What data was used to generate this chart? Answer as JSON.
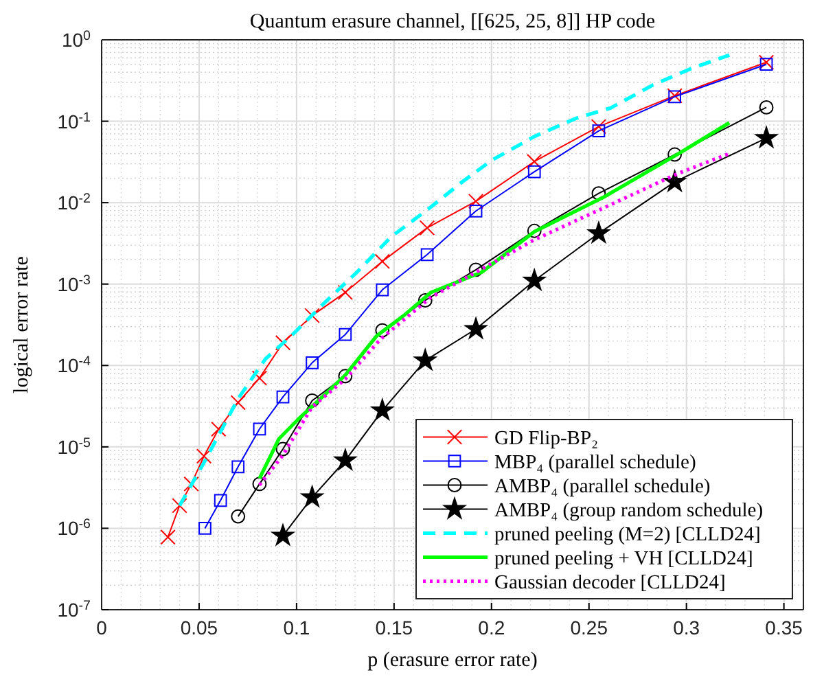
{
  "chart_data": {
    "type": "line",
    "title": "Quantum erasure channel, [[625, 25, 8]] HP code",
    "xlabel": "p (erasure error rate)",
    "ylabel": "logical error rate",
    "xlim": [
      0,
      0.36
    ],
    "xticks": [
      0,
      0.05,
      0.1,
      0.15,
      0.2,
      0.25,
      0.3,
      0.35
    ],
    "ylim": [
      1e-07,
      1
    ],
    "yticks": [
      {
        "value": 1e-07,
        "label": "10$^{-7}$"
      },
      {
        "value": 1e-06,
        "label": "10$^{-6}$"
      },
      {
        "value": 1e-05,
        "label": "10$^{-5}$"
      },
      {
        "value": 0.0001,
        "label": "10$^{-4}$"
      },
      {
        "value": 0.001,
        "label": "10$^{-3}$"
      },
      {
        "value": 0.01,
        "label": "10$^{-2}$"
      },
      {
        "value": 0.1,
        "label": "10$^{-1}$"
      },
      {
        "value": 1,
        "label": "10$^{0}$"
      }
    ],
    "log": true,
    "grid": true,
    "legend": "bottom right",
    "series": [
      {
        "name": "GD Flip-BP₂",
        "color": "#ff0000",
        "marker": "cross",
        "line_style": "solid",
        "x": [
          0.034,
          0.04,
          0.046,
          0.0525,
          0.06,
          0.07,
          0.081,
          0.093,
          0.108,
          0.125,
          0.144,
          0.167,
          0.192,
          0.222,
          0.255,
          0.294,
          0.341
        ],
        "values": [
          7.8e-07,
          1.9e-06,
          3.5e-06,
          7.7e-06,
          1.65e-05,
          3.5e-05,
          7e-05,
          0.00019,
          0.00041,
          0.00079,
          0.0019,
          0.0049,
          0.0104,
          0.032,
          0.086,
          0.206,
          0.53
        ]
      },
      {
        "name": "MBP₄ (parallel schedule)",
        "color": "#0000ff",
        "marker": "square",
        "line_style": "solid",
        "x": [
          0.053,
          0.061,
          0.07,
          0.081,
          0.093,
          0.108,
          0.125,
          0.144,
          0.167,
          0.192,
          0.222,
          0.255,
          0.294,
          0.341
        ],
        "values": [
          1e-06,
          2.2e-06,
          5.7e-06,
          1.66e-05,
          4.1e-05,
          0.000108,
          0.00024,
          0.00085,
          0.0023,
          0.0079,
          0.024,
          0.076,
          0.2,
          0.5
        ]
      },
      {
        "name": "AMBP₄ (parallel schedule)",
        "color": "#000000",
        "marker": "circle",
        "line_style": "solid",
        "x": [
          0.07,
          0.081,
          0.093,
          0.108,
          0.125,
          0.144,
          0.166,
          0.192,
          0.222,
          0.255,
          0.294,
          0.341
        ],
        "values": [
          1.4e-06,
          3.5e-06,
          9.4e-06,
          3.7e-05,
          7.4e-05,
          0.00027,
          0.00063,
          0.0015,
          0.0045,
          0.013,
          0.039,
          0.148
        ]
      },
      {
        "name": "AMBP₄ (group random schedule)",
        "color": "#000000",
        "marker": "star",
        "line_style": "solid",
        "x": [
          0.093,
          0.108,
          0.125,
          0.144,
          0.166,
          0.192,
          0.222,
          0.255,
          0.294,
          0.341
        ],
        "values": [
          8.1e-07,
          2.4e-06,
          6.8e-06,
          2.8e-05,
          0.000115,
          0.00028,
          0.0011,
          0.0042,
          0.018,
          0.062
        ]
      },
      {
        "name": "pruned peeling (M=2) [CLLD24]",
        "color": "#00ffff",
        "marker": "none",
        "line_style": "dashed",
        "x": [
          0.04,
          0.0525,
          0.07,
          0.084,
          0.098,
          0.115,
          0.131,
          0.1485,
          0.168,
          0.185,
          0.2,
          0.222,
          0.244,
          0.261,
          0.283,
          0.302,
          0.322
        ],
        "values": [
          1.9e-06,
          6.4e-06,
          3.9e-05,
          0.00012,
          0.00024,
          0.00061,
          0.0014,
          0.0038,
          0.0085,
          0.018,
          0.033,
          0.065,
          0.11,
          0.145,
          0.28,
          0.44,
          0.65
        ]
      },
      {
        "name": "pruned peeling + VH [CLLD24]",
        "color": "#00ff00",
        "marker": "none",
        "line_style": "solid",
        "x": [
          0.081,
          0.091,
          0.101,
          0.115,
          0.125,
          0.141,
          0.155,
          0.169,
          0.195,
          0.222,
          0.257,
          0.296,
          0.322
        ],
        "values": [
          4.1e-06,
          1.26e-05,
          2.2e-05,
          4.5e-05,
          7.6e-05,
          0.00023,
          0.00041,
          0.00079,
          0.0014,
          0.0044,
          0.0115,
          0.04,
          0.096
        ]
      },
      {
        "name": "Gaussian decoder [CLLD24]",
        "color": "#ff00ff",
        "marker": "none",
        "line_style": "dotted",
        "x": [
          0.081,
          0.093,
          0.108,
          0.125,
          0.143,
          0.169,
          0.222,
          0.257,
          0.296,
          0.322
        ],
        "values": [
          3.4e-06,
          7.9e-06,
          3.1e-05,
          6.8e-05,
          0.00021,
          0.00069,
          0.0035,
          0.0085,
          0.023,
          0.04
        ]
      }
    ]
  }
}
